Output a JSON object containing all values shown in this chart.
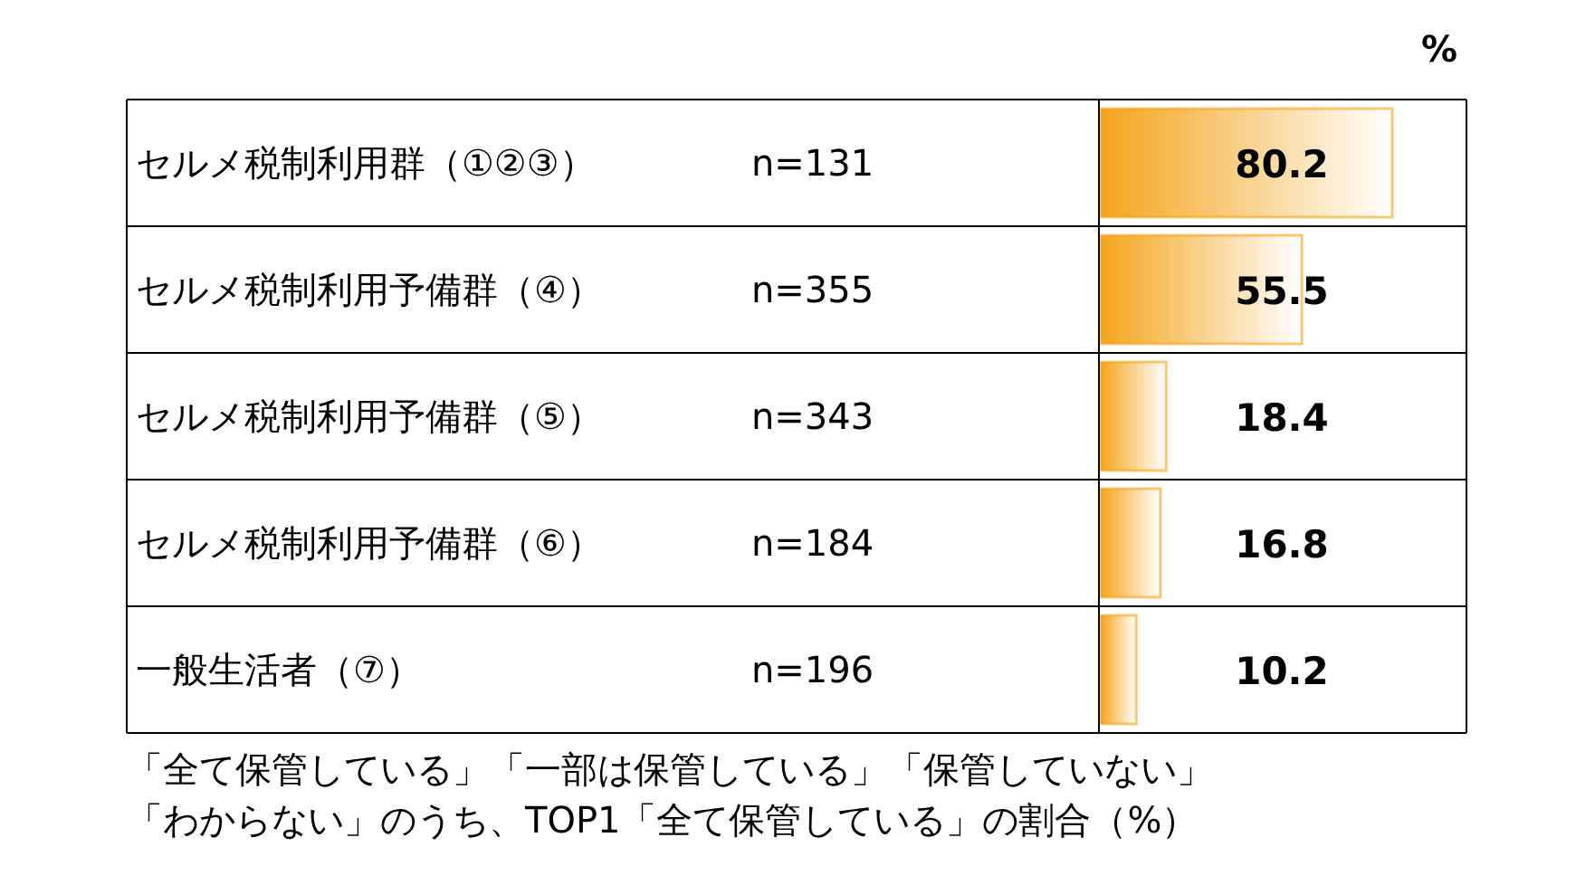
{
  "chart_data": {
    "type": "bar",
    "orientation": "horizontal",
    "xlabel": "%",
    "categories": [
      "セルメ税制利用群（①②③）",
      "セルメ税制利用予備群（④）",
      "セルメ税制利用予備群（⑤）",
      "セルメ税制利用予備群（⑥）",
      "一般生活者（⑦）"
    ],
    "values": [
      80.2,
      55.5,
      18.4,
      16.8,
      10.2
    ],
    "color": "#f5a41c",
    "data_labels": true,
    "annotations": [
      "n=131",
      "n=355",
      "n=343",
      "n=184",
      "n=196",
      "「全て保管している」「一部は保管している」「保管していない」",
      "「わからない」のうち、TOP1「全て保管している」の割合（%）"
    ]
  }
}
